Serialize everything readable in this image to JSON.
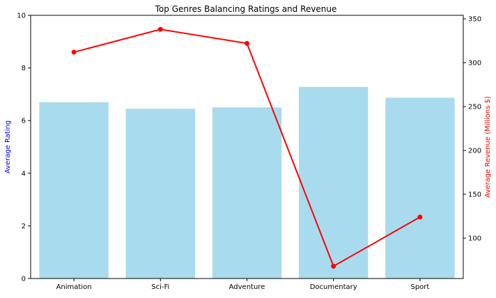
{
  "chart_data": {
    "type": "bar+line",
    "title": "Top Genres Balancing Ratings and Revenue",
    "xlabel": "",
    "categories": [
      "Animation",
      "Sci-Fi",
      "Adventure",
      "Documentary",
      "Sport"
    ],
    "y_left": {
      "label": "Average Rating",
      "lim": [
        0,
        10
      ],
      "ticks": [
        0,
        2,
        4,
        6,
        8,
        10
      ],
      "color": "#0000ff"
    },
    "y_right": {
      "label": "Average Revenue (Millions $)",
      "lim": [
        54,
        354
      ],
      "ticks": [
        100,
        150,
        200,
        250,
        300,
        350
      ],
      "color": "#ff0000"
    },
    "series": [
      {
        "type": "bar",
        "axis": "left",
        "color": "#a8dbed",
        "values": [
          6.7,
          6.45,
          6.5,
          7.28,
          6.87
        ]
      },
      {
        "type": "line",
        "axis": "right",
        "color": "#ff0000",
        "marker": "circle",
        "values": [
          312,
          338,
          322,
          68,
          124
        ]
      }
    ],
    "grid": false,
    "legend": "none"
  }
}
